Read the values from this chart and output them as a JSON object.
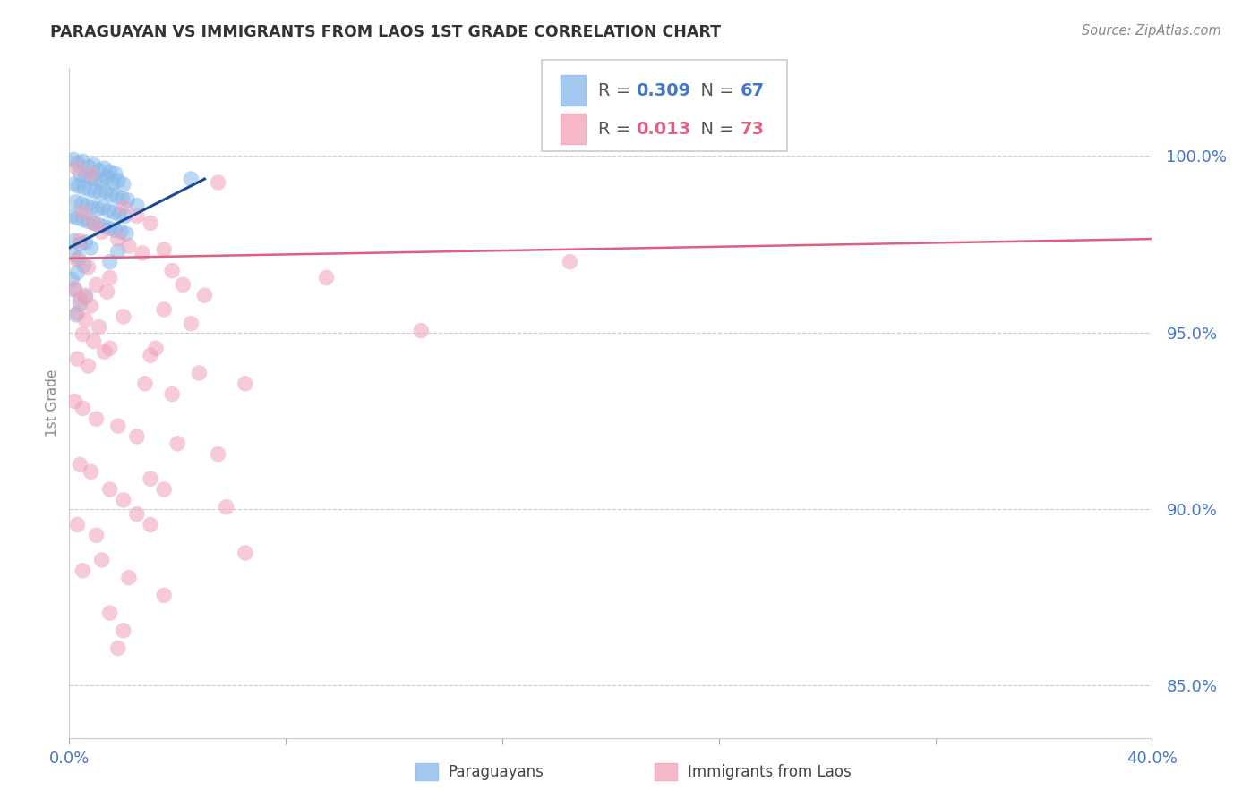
{
  "title": "PARAGUAYAN VS IMMIGRANTS FROM LAOS 1ST GRADE CORRELATION CHART",
  "source": "Source: ZipAtlas.com",
  "ylabel": "1st Grade",
  "xlim": [
    0.0,
    40.0
  ],
  "ylim": [
    83.5,
    102.5
  ],
  "yticks": [
    85.0,
    90.0,
    95.0,
    100.0
  ],
  "ytick_labels": [
    "85.0%",
    "90.0%",
    "95.0%",
    "100.0%"
  ],
  "xtick_positions": [
    0.0,
    8.0,
    16.0,
    24.0,
    32.0,
    40.0
  ],
  "xtick_labels": [
    "0.0%",
    "",
    "",
    "",
    "",
    "40.0%"
  ],
  "color_blue": "#85B8EA",
  "color_pink": "#F2A0B8",
  "line_blue": "#1A4A9A",
  "line_pink": "#E06080",
  "axis_color": "#4477CC",
  "blue_points": [
    [
      0.15,
      99.9
    ],
    [
      0.3,
      99.8
    ],
    [
      0.5,
      99.85
    ],
    [
      0.7,
      99.7
    ],
    [
      0.9,
      99.75
    ],
    [
      1.1,
      99.6
    ],
    [
      1.3,
      99.65
    ],
    [
      1.5,
      99.55
    ],
    [
      1.7,
      99.5
    ],
    [
      0.4,
      99.5
    ],
    [
      0.6,
      99.45
    ],
    [
      0.8,
      99.4
    ],
    [
      1.0,
      99.35
    ],
    [
      1.2,
      99.3
    ],
    [
      1.4,
      99.4
    ],
    [
      1.6,
      99.25
    ],
    [
      1.8,
      99.3
    ],
    [
      2.0,
      99.2
    ],
    [
      0.2,
      99.2
    ],
    [
      0.35,
      99.15
    ],
    [
      0.55,
      99.1
    ],
    [
      0.75,
      99.05
    ],
    [
      0.95,
      99.0
    ],
    [
      1.15,
      98.95
    ],
    [
      1.35,
      99.0
    ],
    [
      1.55,
      98.9
    ],
    [
      1.75,
      98.85
    ],
    [
      1.95,
      98.8
    ],
    [
      2.15,
      98.75
    ],
    [
      0.25,
      98.7
    ],
    [
      0.45,
      98.65
    ],
    [
      0.65,
      98.6
    ],
    [
      0.85,
      98.55
    ],
    [
      1.05,
      98.5
    ],
    [
      1.25,
      98.55
    ],
    [
      1.45,
      98.45
    ],
    [
      1.65,
      98.4
    ],
    [
      1.85,
      98.35
    ],
    [
      2.05,
      98.3
    ],
    [
      0.1,
      98.3
    ],
    [
      0.3,
      98.25
    ],
    [
      0.5,
      98.2
    ],
    [
      0.7,
      98.15
    ],
    [
      0.9,
      98.1
    ],
    [
      1.1,
      98.05
    ],
    [
      1.3,
      98.0
    ],
    [
      1.5,
      97.95
    ],
    [
      1.7,
      97.9
    ],
    [
      1.9,
      97.85
    ],
    [
      2.1,
      97.8
    ],
    [
      0.2,
      97.6
    ],
    [
      0.4,
      97.5
    ],
    [
      0.6,
      97.55
    ],
    [
      0.8,
      97.4
    ],
    [
      4.5,
      99.35
    ],
    [
      0.15,
      97.2
    ],
    [
      0.35,
      97.1
    ],
    [
      0.55,
      96.9
    ],
    [
      1.5,
      97.0
    ],
    [
      0.3,
      96.7
    ],
    [
      0.1,
      96.5
    ],
    [
      2.5,
      98.6
    ],
    [
      0.2,
      96.2
    ],
    [
      1.8,
      97.3
    ],
    [
      0.4,
      95.8
    ],
    [
      0.6,
      96.0
    ],
    [
      0.25,
      95.5
    ]
  ],
  "pink_points": [
    [
      0.3,
      99.65
    ],
    [
      0.8,
      99.5
    ],
    [
      5.5,
      99.25
    ],
    [
      0.5,
      98.4
    ],
    [
      0.9,
      98.1
    ],
    [
      2.0,
      98.55
    ],
    [
      2.5,
      98.3
    ],
    [
      3.0,
      98.1
    ],
    [
      0.4,
      97.6
    ],
    [
      1.2,
      97.85
    ],
    [
      1.8,
      97.65
    ],
    [
      2.2,
      97.45
    ],
    [
      2.7,
      97.25
    ],
    [
      0.3,
      97.05
    ],
    [
      0.7,
      96.85
    ],
    [
      1.5,
      96.55
    ],
    [
      3.5,
      97.35
    ],
    [
      18.5,
      97.0
    ],
    [
      0.2,
      96.25
    ],
    [
      0.6,
      96.05
    ],
    [
      1.0,
      96.35
    ],
    [
      1.4,
      96.15
    ],
    [
      3.8,
      96.75
    ],
    [
      4.2,
      96.35
    ],
    [
      0.4,
      95.95
    ],
    [
      0.8,
      95.75
    ],
    [
      5.0,
      96.05
    ],
    [
      9.5,
      96.55
    ],
    [
      0.3,
      95.55
    ],
    [
      0.6,
      95.35
    ],
    [
      1.1,
      95.15
    ],
    [
      2.0,
      95.45
    ],
    [
      3.5,
      95.65
    ],
    [
      4.5,
      95.25
    ],
    [
      0.5,
      94.95
    ],
    [
      0.9,
      94.75
    ],
    [
      1.5,
      94.55
    ],
    [
      3.0,
      94.35
    ],
    [
      3.2,
      94.55
    ],
    [
      4.8,
      93.85
    ],
    [
      13.0,
      95.05
    ],
    [
      0.3,
      94.25
    ],
    [
      0.7,
      94.05
    ],
    [
      1.3,
      94.45
    ],
    [
      2.8,
      93.55
    ],
    [
      3.8,
      93.25
    ],
    [
      6.5,
      93.55
    ],
    [
      0.2,
      93.05
    ],
    [
      0.5,
      92.85
    ],
    [
      1.0,
      92.55
    ],
    [
      1.8,
      92.35
    ],
    [
      2.5,
      92.05
    ],
    [
      4.0,
      91.85
    ],
    [
      5.5,
      91.55
    ],
    [
      0.4,
      91.25
    ],
    [
      0.8,
      91.05
    ],
    [
      1.5,
      90.55
    ],
    [
      2.0,
      90.25
    ],
    [
      3.0,
      90.85
    ],
    [
      3.5,
      90.55
    ],
    [
      5.8,
      90.05
    ],
    [
      0.3,
      89.55
    ],
    [
      1.0,
      89.25
    ],
    [
      2.5,
      89.85
    ],
    [
      3.0,
      89.55
    ],
    [
      6.5,
      88.75
    ],
    [
      0.5,
      88.25
    ],
    [
      1.2,
      88.55
    ],
    [
      2.2,
      88.05
    ],
    [
      3.5,
      87.55
    ],
    [
      1.5,
      87.05
    ],
    [
      2.0,
      86.55
    ],
    [
      1.8,
      86.05
    ]
  ],
  "blue_line_x": [
    0.0,
    5.0
  ],
  "blue_line_y": [
    97.4,
    99.35
  ],
  "pink_line_x": [
    0.0,
    40.0
  ],
  "pink_line_y": [
    97.1,
    97.65
  ]
}
